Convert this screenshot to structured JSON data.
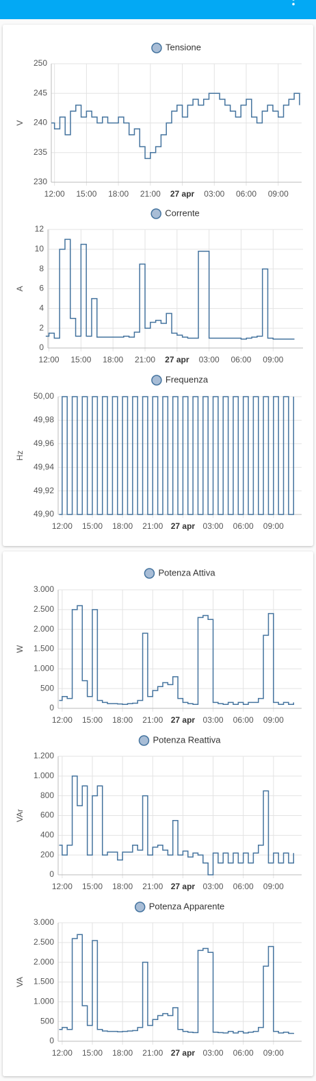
{
  "chart_data": [
    {
      "type": "line",
      "title": "Tensione",
      "ylabel": "V",
      "color": "#44739e",
      "grid": true,
      "step": true,
      "xlim": [
        11.7,
        35.2
      ],
      "ylim": [
        230,
        250
      ],
      "yticks": [
        230,
        235,
        240,
        245,
        250
      ],
      "xticks": [
        {
          "value": 12,
          "label": "12:00"
        },
        {
          "value": 15,
          "label": "15:00"
        },
        {
          "value": 18,
          "label": "18:00"
        },
        {
          "value": 21,
          "label": "21:00"
        },
        {
          "value": 24,
          "label": "27 apr"
        },
        {
          "value": 27,
          "label": "03:00"
        },
        {
          "value": 30,
          "label": "06:00"
        },
        {
          "value": 33,
          "label": "09:00"
        }
      ],
      "x": [
        11.7,
        12,
        12.5,
        13,
        13.5,
        14,
        14.5,
        15,
        15.5,
        16,
        16.5,
        17,
        17.5,
        18,
        18.5,
        19,
        19.5,
        20,
        20.5,
        21,
        21.5,
        22,
        22.5,
        23,
        23.5,
        24,
        24.5,
        25,
        25.5,
        26,
        26.5,
        27,
        27.5,
        28,
        28.5,
        29,
        29.5,
        30,
        30.5,
        31,
        31.5,
        32,
        32.5,
        33,
        33.5,
        34,
        34.5,
        35
      ],
      "values": [
        240,
        239,
        241,
        238,
        242,
        243,
        241,
        242,
        241,
        240,
        241,
        240,
        240,
        241,
        240,
        238,
        239,
        236,
        234,
        235,
        236,
        238,
        240,
        242,
        243,
        241,
        243,
        244,
        243,
        244,
        245,
        245,
        244,
        243,
        242,
        241,
        243,
        244,
        241,
        240,
        242,
        243,
        242,
        241,
        243,
        244,
        245,
        243
      ]
    },
    {
      "type": "line",
      "title": "Corrente",
      "ylabel": "A",
      "color": "#44739e",
      "grid": true,
      "step": true,
      "xlim": [
        11.9,
        35.8
      ],
      "ylim": [
        0,
        12
      ],
      "yticks": [
        0,
        2,
        4,
        6,
        8,
        10,
        12
      ],
      "xticks": [
        {
          "value": 12,
          "label": "12:00"
        },
        {
          "value": 15,
          "label": "15:00"
        },
        {
          "value": 18,
          "label": "18:00"
        },
        {
          "value": 21,
          "label": "21:00"
        },
        {
          "value": 24,
          "label": "27 apr"
        },
        {
          "value": 27,
          "label": "03:00"
        },
        {
          "value": 30,
          "label": "06:00"
        },
        {
          "value": 33,
          "label": "09:00"
        }
      ],
      "x": [
        11.7,
        12,
        12.5,
        13,
        13.5,
        14,
        14.5,
        15,
        15.5,
        16,
        16.5,
        17,
        17.5,
        18,
        18.5,
        19,
        19.5,
        20,
        20.5,
        21,
        21.5,
        22,
        22.5,
        23,
        23.5,
        24,
        24.5,
        25,
        25.5,
        26,
        26.5,
        27,
        27.5,
        28,
        28.5,
        29,
        29.5,
        30,
        30.5,
        31,
        31.5,
        32,
        32.5,
        33,
        33.5,
        34,
        34.5,
        35
      ],
      "values": [
        1.2,
        1.5,
        1,
        10,
        11,
        3,
        1.2,
        10.5,
        1.2,
        5,
        1.1,
        1.1,
        1.1,
        1.1,
        1.1,
        1.2,
        1.1,
        1.6,
        8.5,
        2,
        2.6,
        2.8,
        2.5,
        3.5,
        1.5,
        1.3,
        1.1,
        1,
        1,
        9.8,
        9.8,
        1,
        1,
        1,
        1,
        1,
        1,
        0.9,
        1,
        1.1,
        1.2,
        8,
        1,
        0.9,
        0.9,
        0.9,
        0.9,
        0.9
      ]
    },
    {
      "type": "line",
      "title": "Frequenza",
      "ylabel": "Hz",
      "color": "#44739e",
      "grid": true,
      "step": true,
      "xlim": [
        11.6,
        35.8
      ],
      "ylim": [
        49.9,
        50.0
      ],
      "yticks": [
        {
          "value": 49.9,
          "label": "49,90"
        },
        {
          "value": 49.92,
          "label": "49,92"
        },
        {
          "value": 49.94,
          "label": "49,94"
        },
        {
          "value": 49.96,
          "label": "49,96"
        },
        {
          "value": 49.98,
          "label": "49,98"
        },
        {
          "value": 50.0,
          "label": "50,00"
        }
      ],
      "xticks": [
        {
          "value": 12,
          "label": "12:00"
        },
        {
          "value": 15,
          "label": "15:00"
        },
        {
          "value": 18,
          "label": "18:00"
        },
        {
          "value": 21,
          "label": "21:00"
        },
        {
          "value": 24,
          "label": "27 apr"
        },
        {
          "value": 27,
          "label": "03:00"
        },
        {
          "value": 30,
          "label": "06:00"
        },
        {
          "value": 33,
          "label": "09:00"
        }
      ],
      "x": [
        11.7,
        12,
        12.5,
        13,
        13.5,
        14,
        14.5,
        15,
        15.5,
        16,
        16.5,
        17,
        17.5,
        18,
        18.5,
        19,
        19.5,
        20,
        20.5,
        21,
        21.5,
        22,
        22.5,
        23,
        23.5,
        24,
        24.5,
        25,
        25.5,
        26,
        26.5,
        27,
        27.5,
        28,
        28.5,
        29,
        29.5,
        30,
        30.5,
        31,
        31.5,
        32,
        32.5,
        33,
        33.5,
        34,
        34.5,
        35
      ],
      "values": [
        49.9,
        50,
        49.9,
        50,
        49.9,
        50,
        49.9,
        50,
        49.9,
        50,
        49.9,
        50,
        49.9,
        50,
        49.9,
        50,
        49.9,
        50,
        49.9,
        50,
        49.9,
        50,
        49.9,
        50,
        49.9,
        50,
        49.9,
        50,
        49.9,
        50,
        49.9,
        50,
        49.9,
        50,
        49.9,
        50,
        49.9,
        50,
        49.9,
        50,
        49.9,
        50,
        49.9,
        50,
        49.9,
        50,
        49.9,
        50
      ]
    },
    {
      "type": "line",
      "title": "Potenza Attiva",
      "ylabel": "W",
      "color": "#44739e",
      "grid": true,
      "step": true,
      "xlim": [
        11.6,
        35.8
      ],
      "ylim": [
        0,
        3000
      ],
      "yticks": [
        0,
        500,
        {
          "value": 1000,
          "label": "1.000"
        },
        {
          "value": 1500,
          "label": "1.500"
        },
        {
          "value": 2000,
          "label": "2.000"
        },
        {
          "value": 2500,
          "label": "2.500"
        },
        {
          "value": 3000,
          "label": "3.000"
        }
      ],
      "xticks": [
        {
          "value": 12,
          "label": "12:00"
        },
        {
          "value": 15,
          "label": "15:00"
        },
        {
          "value": 18,
          "label": "18:00"
        },
        {
          "value": 21,
          "label": "21:00"
        },
        {
          "value": 24,
          "label": "27 apr"
        },
        {
          "value": 27,
          "label": "03:00"
        },
        {
          "value": 30,
          "label": "06:00"
        },
        {
          "value": 33,
          "label": "09:00"
        }
      ],
      "x": [
        11.7,
        12,
        12.5,
        13,
        13.5,
        14,
        14.5,
        15,
        15.5,
        16,
        16.5,
        17,
        17.5,
        18,
        18.5,
        19,
        19.5,
        20,
        20.5,
        21,
        21.5,
        22,
        22.5,
        23,
        23.5,
        24,
        24.5,
        25,
        25.5,
        26,
        26.5,
        27,
        27.5,
        28,
        28.5,
        29,
        29.5,
        30,
        30.5,
        31,
        31.5,
        32,
        32.5,
        33,
        33.5,
        34,
        34.5,
        35
      ],
      "values": [
        200,
        300,
        250,
        2500,
        2600,
        700,
        300,
        2500,
        200,
        150,
        120,
        120,
        110,
        100,
        120,
        130,
        200,
        1900,
        300,
        450,
        550,
        650,
        600,
        800,
        250,
        150,
        120,
        100,
        2300,
        2350,
        2250,
        150,
        120,
        100,
        150,
        100,
        150,
        100,
        150,
        150,
        250,
        1850,
        2400,
        150,
        100,
        150,
        100,
        150
      ]
    },
    {
      "type": "line",
      "title": "Potenza Reattiva",
      "ylabel": "VAr",
      "color": "#44739e",
      "grid": true,
      "step": true,
      "xlim": [
        11.6,
        35.8
      ],
      "ylim": [
        0,
        1200
      ],
      "yticks": [
        0,
        200,
        400,
        600,
        800,
        {
          "value": 1000,
          "label": "1.000"
        },
        {
          "value": 1200,
          "label": "1.200"
        }
      ],
      "xticks": [
        {
          "value": 12,
          "label": "12:00"
        },
        {
          "value": 15,
          "label": "15:00"
        },
        {
          "value": 18,
          "label": "18:00"
        },
        {
          "value": 21,
          "label": "21:00"
        },
        {
          "value": 24,
          "label": "27 apr"
        },
        {
          "value": 27,
          "label": "03:00"
        },
        {
          "value": 30,
          "label": "06:00"
        },
        {
          "value": 33,
          "label": "09:00"
        }
      ],
      "x": [
        11.7,
        12,
        12.5,
        13,
        13.5,
        14,
        14.5,
        15,
        15.5,
        16,
        16.5,
        17,
        17.5,
        18,
        18.5,
        19,
        19.5,
        20,
        20.5,
        21,
        21.5,
        22,
        22.5,
        23,
        23.5,
        24,
        24.5,
        25,
        25.5,
        26,
        26.5,
        27,
        27.5,
        28,
        28.5,
        29,
        29.5,
        30,
        30.5,
        31,
        31.5,
        32,
        32.5,
        33,
        33.5,
        34,
        34.5,
        35
      ],
      "values": [
        300,
        200,
        300,
        1000,
        700,
        900,
        200,
        800,
        900,
        200,
        230,
        230,
        150,
        230,
        230,
        300,
        250,
        800,
        200,
        280,
        300,
        250,
        200,
        550,
        200,
        240,
        180,
        220,
        200,
        120,
        0,
        220,
        120,
        220,
        120,
        220,
        120,
        220,
        120,
        220,
        300,
        850,
        120,
        220,
        120,
        220,
        120,
        220
      ]
    },
    {
      "type": "line",
      "title": "Potenza Apparente",
      "ylabel": "VA",
      "color": "#44739e",
      "grid": true,
      "step": true,
      "xlim": [
        11.6,
        35.8
      ],
      "ylim": [
        0,
        3000
      ],
      "yticks": [
        0,
        500,
        {
          "value": 1000,
          "label": "1.000"
        },
        {
          "value": 1500,
          "label": "1.500"
        },
        {
          "value": 2000,
          "label": "2.000"
        },
        {
          "value": 2500,
          "label": "2.500"
        },
        {
          "value": 3000,
          "label": "3.000"
        }
      ],
      "xticks": [
        {
          "value": 12,
          "label": "12:00"
        },
        {
          "value": 15,
          "label": "15:00"
        },
        {
          "value": 18,
          "label": "18:00"
        },
        {
          "value": 21,
          "label": "21:00"
        },
        {
          "value": 24,
          "label": "27 apr"
        },
        {
          "value": 27,
          "label": "03:00"
        },
        {
          "value": 30,
          "label": "06:00"
        },
        {
          "value": 33,
          "label": "09:00"
        }
      ],
      "x": [
        11.7,
        12,
        12.5,
        13,
        13.5,
        14,
        14.5,
        15,
        15.5,
        16,
        16.5,
        17,
        17.5,
        18,
        18.5,
        19,
        19.5,
        20,
        20.5,
        21,
        21.5,
        22,
        22.5,
        23,
        23.5,
        24,
        24.5,
        25,
        25.5,
        26,
        26.5,
        27,
        27.5,
        28,
        28.5,
        29,
        29.5,
        30,
        30.5,
        31,
        31.5,
        32,
        32.5,
        33,
        33.5,
        34,
        34.5,
        35
      ],
      "values": [
        300,
        350,
        300,
        2600,
        2700,
        900,
        400,
        2550,
        300,
        260,
        250,
        250,
        240,
        250,
        260,
        270,
        350,
        2000,
        400,
        550,
        650,
        700,
        650,
        850,
        300,
        250,
        230,
        220,
        2300,
        2350,
        2250,
        230,
        220,
        210,
        250,
        210,
        250,
        210,
        230,
        250,
        350,
        1900,
        2400,
        250,
        210,
        230,
        200,
        210
      ]
    }
  ]
}
